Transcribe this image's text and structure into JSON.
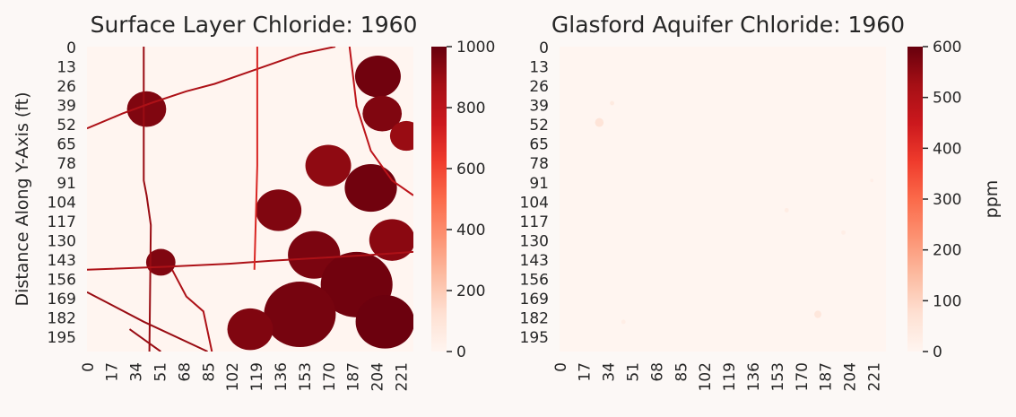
{
  "chart_data": [
    {
      "type": "heatmap",
      "title": "Surface Layer Chloride: 1960",
      "ylabel": "Distance Along Y-Axis (ft)",
      "xlabel": "",
      "x_ticks": [
        "0",
        "17",
        "34",
        "51",
        "68",
        "85",
        "102",
        "119",
        "136",
        "153",
        "170",
        "187",
        "204",
        "221"
      ],
      "y_ticks": [
        "0",
        "13",
        "26",
        "39",
        "52",
        "65",
        "78",
        "91",
        "104",
        "117",
        "130",
        "143",
        "156",
        "169",
        "182",
        "195"
      ],
      "x_range": [
        0,
        230
      ],
      "y_range": [
        0,
        205
      ],
      "colorbar": {
        "label": "",
        "ticks": [
          "0",
          "200",
          "400",
          "600",
          "800",
          "1000"
        ],
        "range": [
          0,
          1000
        ],
        "colormap": "Reds",
        "bins": 20
      },
      "features": {
        "roads": [
          {
            "path": [
              [
                40,
                0
              ],
              [
                40,
                90
              ],
              [
                42,
                100
              ],
              [
                45,
                120
              ],
              [
                44,
                205
              ]
            ],
            "value": 900
          },
          {
            "path": [
              [
                0,
                55
              ],
              [
                25,
                45
              ],
              [
                45,
                38
              ],
              [
                70,
                30
              ],
              [
                90,
                25
              ],
              [
                120,
                15
              ],
              [
                150,
                5
              ],
              [
                175,
                0
              ]
            ],
            "value": 850
          },
          {
            "path": [
              [
                0,
                150
              ],
              [
                55,
                148
              ],
              [
                100,
                146
              ],
              [
                130,
                144
              ],
              [
                200,
                140
              ],
              [
                230,
                138
              ]
            ],
            "value": 850
          },
          {
            "path": [
              [
                0,
                165
              ],
              [
                40,
                185
              ],
              [
                85,
                205
              ]
            ],
            "value": 900
          },
          {
            "path": [
              [
                120,
                0
              ],
              [
                120,
                80
              ],
              [
                118,
                150
              ]
            ],
            "value": 700
          },
          {
            "path": [
              [
                60,
                150
              ],
              [
                70,
                168
              ],
              [
                82,
                178
              ],
              [
                88,
                205
              ]
            ],
            "value": 850
          },
          {
            "path": [
              [
                30,
                190
              ],
              [
                52,
                205
              ]
            ],
            "value": 900
          },
          {
            "path": [
              [
                185,
                0
              ],
              [
                190,
                40
              ],
              [
                200,
                70
              ],
              [
                215,
                90
              ],
              [
                230,
                100
              ]
            ],
            "value": 800
          }
        ],
        "patches": [
          {
            "c": [
              42,
              42
            ],
            "r": 12,
            "value": 950
          },
          {
            "c": [
              52,
              145
            ],
            "r": 9,
            "value": 950
          },
          {
            "c": [
              205,
              20
            ],
            "r": 14,
            "value": 980
          },
          {
            "c": [
              208,
              45
            ],
            "r": 12,
            "value": 950
          },
          {
            "c": [
              200,
              95
            ],
            "r": 16,
            "value": 980
          },
          {
            "c": [
              170,
              80
            ],
            "r": 14,
            "value": 920
          },
          {
            "c": [
              135,
              110
            ],
            "r": 14,
            "value": 950
          },
          {
            "c": [
              160,
              140
            ],
            "r": 16,
            "value": 960
          },
          {
            "c": [
              190,
              160
            ],
            "r": 22,
            "value": 980
          },
          {
            "c": [
              150,
              180
            ],
            "r": 22,
            "value": 970
          },
          {
            "c": [
              210,
              185
            ],
            "r": 18,
            "value": 990
          },
          {
            "c": [
              215,
              130
            ],
            "r": 14,
            "value": 930
          },
          {
            "c": [
              115,
              190
            ],
            "r": 14,
            "value": 950
          },
          {
            "c": [
              225,
              60
            ],
            "r": 10,
            "value": 900
          }
        ]
      }
    },
    {
      "type": "heatmap",
      "title": "Glasford Aquifer Chloride: 1960",
      "ylabel": "",
      "xlabel": "",
      "x_ticks": [
        "0",
        "17",
        "34",
        "51",
        "68",
        "85",
        "102",
        "119",
        "136",
        "153",
        "170",
        "187",
        "204",
        "221"
      ],
      "y_ticks": [
        "0",
        "13",
        "26",
        "39",
        "52",
        "65",
        "78",
        "91",
        "104",
        "117",
        "130",
        "143",
        "156",
        "169",
        "182",
        "195"
      ],
      "x_range": [
        0,
        230
      ],
      "y_range": [
        0,
        205
      ],
      "colorbar": {
        "label": "ppm",
        "ticks": [
          "0",
          "100",
          "200",
          "300",
          "400",
          "500",
          "600"
        ],
        "range": [
          0,
          600
        ],
        "colormap": "Reds",
        "bins": 20
      },
      "features": {
        "spots": [
          {
            "c": [
              28,
              51
            ],
            "r": 3,
            "value": 60
          },
          {
            "c": [
              37,
              38
            ],
            "r": 1.5,
            "value": 40
          },
          {
            "c": [
              182,
              180
            ],
            "r": 2.5,
            "value": 50
          },
          {
            "c": [
              160,
              110
            ],
            "r": 1.5,
            "value": 30
          },
          {
            "c": [
              200,
              125
            ],
            "r": 1.5,
            "value": 25
          },
          {
            "c": [
              45,
              185
            ],
            "r": 1.5,
            "value": 25
          },
          {
            "c": [
              220,
              90
            ],
            "r": 1.2,
            "value": 20
          }
        ]
      }
    }
  ]
}
